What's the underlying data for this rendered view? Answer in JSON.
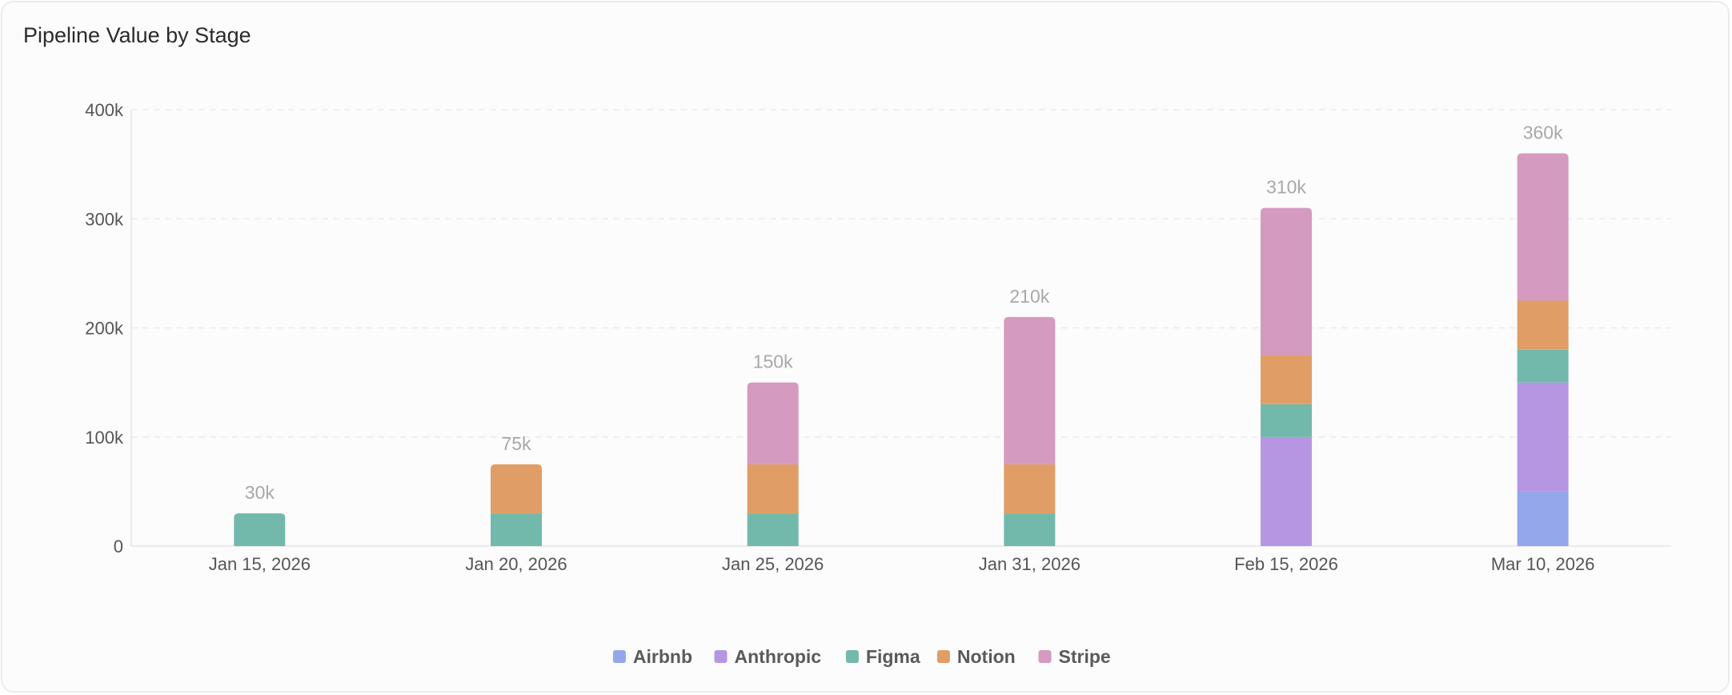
{
  "card": {
    "title": "Pipeline Value by Stage"
  },
  "chart_data": {
    "type": "bar",
    "stacked": true,
    "title": "Pipeline Value by Stage",
    "xlabel": "",
    "ylabel": "",
    "ylim": [
      0,
      400000
    ],
    "yticks": [
      {
        "value": 0,
        "label": "0"
      },
      {
        "value": 100000,
        "label": "100k"
      },
      {
        "value": 200000,
        "label": "200k"
      },
      {
        "value": 300000,
        "label": "300k"
      },
      {
        "value": 400000,
        "label": "400k"
      }
    ],
    "grid": true,
    "legend_position": "bottom-center",
    "categories": [
      "Jan 15, 2026",
      "Jan 20, 2026",
      "Jan 25, 2026",
      "Jan 31, 2026",
      "Feb 15, 2026",
      "Mar 10, 2026"
    ],
    "series": [
      {
        "name": "Airbnb",
        "color": "#93a7ea",
        "values": [
          0,
          0,
          0,
          0,
          0,
          50000
        ]
      },
      {
        "name": "Anthropic",
        "color": "#b696e2",
        "values": [
          0,
          0,
          0,
          0,
          100000,
          100000
        ]
      },
      {
        "name": "Figma",
        "color": "#72b9ab",
        "values": [
          30000,
          30000,
          30000,
          30000,
          30000,
          30000
        ]
      },
      {
        "name": "Notion",
        "color": "#e09d66",
        "values": [
          0,
          45000,
          45000,
          45000,
          45000,
          45000
        ]
      },
      {
        "name": "Stripe",
        "color": "#d59ac0",
        "values": [
          0,
          0,
          75000,
          135000,
          135000,
          135000
        ]
      }
    ],
    "totals": [
      {
        "value": 30000,
        "label": "30k"
      },
      {
        "value": 75000,
        "label": "75k"
      },
      {
        "value": 150000,
        "label": "150k"
      },
      {
        "value": 210000,
        "label": "210k"
      },
      {
        "value": 310000,
        "label": "310k"
      },
      {
        "value": 360000,
        "label": "360k"
      }
    ]
  }
}
